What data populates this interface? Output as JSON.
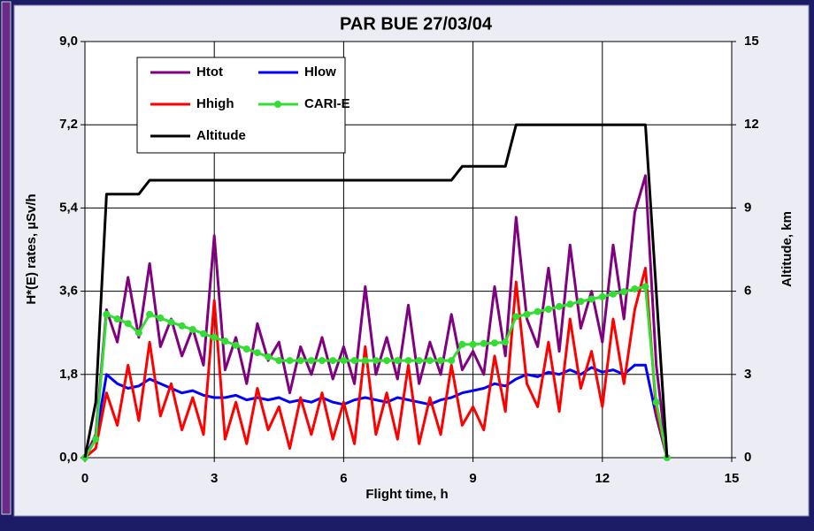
{
  "chart_data": {
    "type": "line",
    "title": "PAR BUE 27/03/04",
    "xlabel": "Flight time, h",
    "ylabel": "H*(E) rates, µSv/h",
    "y2label": "Altitude, km",
    "legend": "upper left",
    "grid": true,
    "xlim": [
      0,
      15
    ],
    "xticks": [
      0,
      3,
      6,
      9,
      12,
      15
    ],
    "ylim": [
      0,
      9
    ],
    "yticks": [
      {
        "value": 0,
        "label": "0,0"
      },
      {
        "value": 1.8,
        "label": "1,8"
      },
      {
        "value": 3.6,
        "label": "3,6"
      },
      {
        "value": 5.4,
        "label": "5,4"
      },
      {
        "value": 7.2,
        "label": "7,2"
      },
      {
        "value": 9,
        "label": "9,0"
      }
    ],
    "y2lim": [
      0,
      15
    ],
    "y2ticks": [
      0,
      3,
      6,
      9,
      12,
      15
    ],
    "x": [
      0,
      0.25,
      0.5,
      0.75,
      1,
      1.25,
      1.5,
      1.75,
      2,
      2.25,
      2.5,
      2.75,
      3,
      3.25,
      3.5,
      3.75,
      4,
      4.25,
      4.5,
      4.75,
      5,
      5.25,
      5.5,
      5.75,
      6,
      6.25,
      6.5,
      6.75,
      7,
      7.25,
      7.5,
      7.75,
      8,
      8.25,
      8.5,
      8.75,
      9,
      9.25,
      9.5,
      9.75,
      10,
      10.25,
      10.5,
      10.75,
      11,
      11.25,
      11.5,
      11.75,
      12,
      12.25,
      12.5,
      12.75,
      13,
      13.25,
      13.5
    ],
    "series": [
      {
        "name": "Htot",
        "color": "#800080",
        "values": [
          0,
          0.5,
          3.2,
          2.5,
          3.9,
          2.6,
          4.2,
          2.4,
          3.0,
          2.2,
          2.8,
          2.0,
          4.8,
          1.9,
          2.6,
          1.6,
          2.9,
          2.1,
          2.5,
          1.4,
          2.4,
          1.8,
          2.6,
          1.7,
          2.4,
          1.6,
          3.7,
          1.8,
          2.6,
          1.7,
          3.3,
          1.6,
          2.5,
          1.8,
          3.1,
          1.9,
          2.3,
          1.8,
          3.7,
          2.2,
          5.2,
          3.0,
          2.4,
          4.1,
          2.3,
          4.6,
          2.8,
          3.6,
          2.5,
          4.6,
          3.0,
          5.3,
          6.1,
          2.0,
          0
        ]
      },
      {
        "name": "Hlow",
        "color": "#0000ff",
        "values": [
          0,
          0.4,
          1.8,
          1.6,
          1.5,
          1.55,
          1.7,
          1.6,
          1.5,
          1.4,
          1.45,
          1.35,
          1.3,
          1.3,
          1.35,
          1.25,
          1.3,
          1.25,
          1.3,
          1.2,
          1.25,
          1.2,
          1.3,
          1.2,
          1.15,
          1.25,
          1.3,
          1.25,
          1.2,
          1.3,
          1.25,
          1.2,
          1.15,
          1.25,
          1.3,
          1.4,
          1.45,
          1.5,
          1.6,
          1.55,
          1.7,
          1.8,
          1.75,
          1.85,
          1.8,
          1.9,
          1.8,
          1.95,
          1.85,
          1.9,
          1.8,
          2.0,
          2.0,
          0.9,
          0
        ]
      },
      {
        "name": "Hhigh",
        "color": "#ff0000",
        "values": [
          0,
          0.2,
          1.4,
          0.7,
          2.0,
          0.8,
          2.5,
          0.9,
          1.6,
          0.6,
          1.3,
          0.5,
          3.4,
          0.4,
          1.2,
          0.3,
          1.5,
          0.6,
          1.1,
          0.2,
          1.3,
          0.5,
          1.4,
          0.4,
          1.2,
          0.3,
          2.4,
          0.5,
          1.4,
          0.4,
          2.0,
          0.3,
          1.3,
          0.5,
          2.0,
          0.7,
          1.1,
          0.6,
          2.2,
          1.0,
          3.8,
          1.6,
          1.1,
          2.5,
          1.0,
          3.0,
          1.5,
          2.3,
          1.1,
          3.0,
          1.6,
          3.2,
          4.1,
          1.0,
          0
        ]
      },
      {
        "name": "CARI-E",
        "color": "#33dd33",
        "markers": true,
        "values": [
          0,
          0.4,
          3.1,
          3.0,
          2.9,
          2.7,
          3.1,
          3.02,
          2.93,
          2.85,
          2.77,
          2.68,
          2.6,
          2.52,
          2.43,
          2.35,
          2.27,
          2.18,
          2.1,
          2.1,
          2.1,
          2.1,
          2.1,
          2.1,
          2.1,
          2.1,
          2.1,
          2.1,
          2.1,
          2.1,
          2.1,
          2.1,
          2.1,
          2.1,
          2.1,
          2.45,
          2.45,
          2.47,
          2.48,
          2.5,
          3.05,
          3.1,
          3.16,
          3.21,
          3.27,
          3.32,
          3.38,
          3.43,
          3.48,
          3.54,
          3.59,
          3.65,
          3.7,
          1.2,
          0
        ]
      },
      {
        "name": "Altitude",
        "color": "#000000",
        "axis": "y2",
        "values": [
          0,
          2,
          9.5,
          9.5,
          9.5,
          9.5,
          10,
          10,
          10,
          10,
          10,
          10,
          10,
          10,
          10,
          10,
          10,
          10,
          10,
          10,
          10,
          10,
          10,
          10,
          10,
          10,
          10,
          10,
          10,
          10,
          10,
          10,
          10,
          10,
          10,
          10.5,
          10.5,
          10.5,
          10.5,
          10.5,
          12,
          12,
          12,
          12,
          12,
          12,
          12,
          12,
          12,
          12,
          12,
          12,
          12,
          6,
          0
        ]
      }
    ]
  }
}
